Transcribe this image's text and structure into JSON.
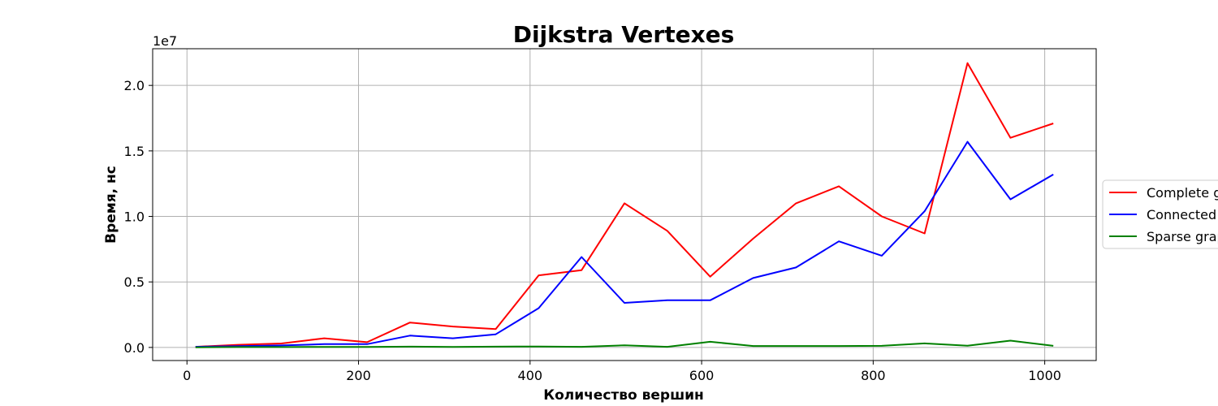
{
  "chart_data": {
    "type": "line",
    "title": "Dijkstra Vertexes",
    "xlabel": "Количество вершин",
    "ylabel": "Время, нс",
    "y_offset_label": "1e7",
    "y_scale": 10000000,
    "xlim": [
      -40,
      1060
    ],
    "ylim": [
      -0.1,
      2.28
    ],
    "x_ticks": [
      0,
      200,
      400,
      600,
      800,
      1000
    ],
    "x_tick_labels": [
      "0",
      "200",
      "400",
      "600",
      "800",
      "1000"
    ],
    "y_ticks": [
      0.0,
      0.5,
      1.0,
      1.5,
      2.0
    ],
    "y_tick_labels": [
      "0.0",
      "0.5",
      "1.0",
      "1.5",
      "2.0"
    ],
    "grid": true,
    "legend_position": "right-outside",
    "x": [
      10,
      60,
      110,
      160,
      210,
      260,
      310,
      360,
      410,
      460,
      510,
      560,
      610,
      660,
      710,
      760,
      810,
      860,
      910,
      960,
      1010
    ],
    "series": [
      {
        "name": "Complete graph",
        "color": "#ff0000",
        "values": [
          0.005,
          0.02,
          0.03,
          0.07,
          0.04,
          0.19,
          0.16,
          0.14,
          0.55,
          0.59,
          1.1,
          0.89,
          0.54,
          0.83,
          1.1,
          1.23,
          1.0,
          0.87,
          2.17,
          1.6,
          1.71
        ]
      },
      {
        "name": "Connected graph",
        "color": "#0000ff",
        "values": [
          0.005,
          0.01,
          0.015,
          0.025,
          0.025,
          0.09,
          0.07,
          0.1,
          0.3,
          0.69,
          0.34,
          0.36,
          0.36,
          0.53,
          0.61,
          0.81,
          0.7,
          1.04,
          1.57,
          1.13,
          1.32
        ]
      },
      {
        "name": "Sparse graph",
        "color": "#008000",
        "values": [
          0.001,
          0.003,
          0.003,
          0.004,
          0.004,
          0.006,
          0.004,
          0.006,
          0.007,
          0.005,
          0.016,
          0.005,
          0.043,
          0.011,
          0.011,
          0.011,
          0.012,
          0.031,
          0.013,
          0.052,
          0.012
        ]
      }
    ]
  }
}
